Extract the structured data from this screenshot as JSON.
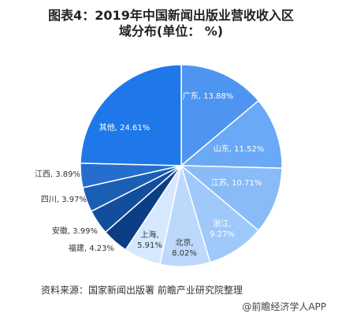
{
  "title": "图表4：2019年中国新闻出版业营收收入区\n域分布(单位： %)",
  "source": "资料来源：国家新闻出版署 前瞻产业研究院整理",
  "footer": "@前瞻经济学人APP",
  "chart_data": {
    "type": "pie",
    "title": "图表4：2019年中国新闻出版业营收收入区域分布(单位： %)",
    "categories": [
      "广东",
      "山东",
      "江苏",
      "浙江",
      "北京",
      "上海",
      "福建",
      "安徽",
      "四川",
      "江西",
      "其他"
    ],
    "values": [
      13.88,
      11.52,
      10.71,
      9.27,
      8.02,
      5.91,
      4.23,
      3.99,
      3.97,
      3.89,
      24.61
    ],
    "labels": [
      "广东, 13.88%",
      "山东, 11.52%",
      "江苏, 10.71%",
      "浙江,\n9.27%",
      "北京,\n8.02%",
      "上海,\n5.91%",
      "福建, 4.23%",
      "安徽, 3.99%",
      "四川, 3.97%",
      "江西, 3.89%",
      "其他, 24.61%"
    ],
    "colors": [
      "#4d95f0",
      "#6aa9f5",
      "#88bbf7",
      "#9fc9fa",
      "#bcd9fc",
      "#d6e8fe",
      "#0c3e86",
      "#124e9e",
      "#1b5fb5",
      "#256ecf",
      "#1e78ea"
    ]
  }
}
